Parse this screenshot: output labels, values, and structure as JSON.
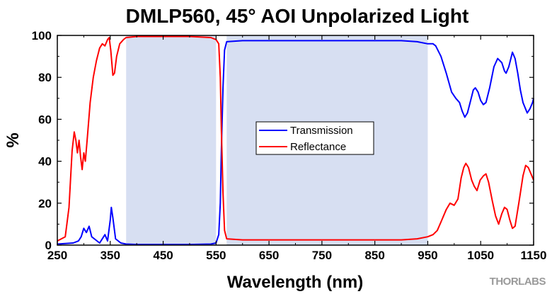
{
  "chart_data": {
    "type": "line",
    "title": "DMLP560, 45° AOI Unpolarized Light",
    "xlabel": "Wavelength (nm)",
    "ylabel": "%",
    "xlim": [
      250,
      1150
    ],
    "ylim": [
      0,
      100
    ],
    "x_ticks": [
      250,
      350,
      450,
      550,
      650,
      750,
      850,
      950,
      1050,
      1150
    ],
    "y_ticks": [
      0,
      20,
      40,
      60,
      80,
      100
    ],
    "grid": false,
    "legend": "center",
    "shaded_bands": [
      {
        "x0": 380,
        "x1": 550,
        "color": "#d7dff2"
      },
      {
        "x0": 570,
        "x1": 950,
        "color": "#d7dff2"
      }
    ],
    "series": [
      {
        "name": "Transmission",
        "color": "#0000ff",
        "points": [
          [
            250,
            0.5
          ],
          [
            280,
            1
          ],
          [
            290,
            2
          ],
          [
            295,
            4
          ],
          [
            300,
            8
          ],
          [
            305,
            6
          ],
          [
            310,
            9
          ],
          [
            315,
            4
          ],
          [
            320,
            3
          ],
          [
            325,
            2
          ],
          [
            330,
            1
          ],
          [
            340,
            5
          ],
          [
            345,
            2
          ],
          [
            350,
            12
          ],
          [
            352,
            18
          ],
          [
            355,
            13
          ],
          [
            360,
            3
          ],
          [
            370,
            1
          ],
          [
            380,
            0.5
          ],
          [
            400,
            0.3
          ],
          [
            450,
            0.3
          ],
          [
            500,
            0.3
          ],
          [
            540,
            0.5
          ],
          [
            550,
            1
          ],
          [
            555,
            5
          ],
          [
            558,
            20
          ],
          [
            560,
            45
          ],
          [
            563,
            75
          ],
          [
            566,
            93
          ],
          [
            570,
            97
          ],
          [
            600,
            97.5
          ],
          [
            650,
            97.5
          ],
          [
            700,
            97.5
          ],
          [
            750,
            97.5
          ],
          [
            800,
            97.5
          ],
          [
            850,
            97.5
          ],
          [
            900,
            97.5
          ],
          [
            930,
            97
          ],
          [
            950,
            96
          ],
          [
            960,
            96
          ],
          [
            965,
            95
          ],
          [
            975,
            90
          ],
          [
            985,
            82
          ],
          [
            995,
            73
          ],
          [
            1003,
            70
          ],
          [
            1010,
            68
          ],
          [
            1015,
            64
          ],
          [
            1020,
            61
          ],
          [
            1025,
            63
          ],
          [
            1030,
            68
          ],
          [
            1036,
            74
          ],
          [
            1040,
            75
          ],
          [
            1045,
            73
          ],
          [
            1050,
            69
          ],
          [
            1055,
            67
          ],
          [
            1060,
            68
          ],
          [
            1067,
            75
          ],
          [
            1075,
            85
          ],
          [
            1082,
            89
          ],
          [
            1090,
            87
          ],
          [
            1095,
            83
          ],
          [
            1098,
            82
          ],
          [
            1103,
            85
          ],
          [
            1110,
            92
          ],
          [
            1115,
            89
          ],
          [
            1120,
            82
          ],
          [
            1125,
            74
          ],
          [
            1130,
            68
          ],
          [
            1138,
            63
          ],
          [
            1143,
            65
          ],
          [
            1148,
            68
          ],
          [
            1150,
            70
          ]
        ]
      },
      {
        "name": "Reflectance",
        "color": "#ff0000",
        "points": [
          [
            250,
            2
          ],
          [
            265,
            4
          ],
          [
            272,
            18
          ],
          [
            278,
            45
          ],
          [
            282,
            54
          ],
          [
            285,
            50
          ],
          [
            288,
            44
          ],
          [
            291,
            50
          ],
          [
            294,
            42
          ],
          [
            297,
            36
          ],
          [
            300,
            44
          ],
          [
            303,
            40
          ],
          [
            307,
            52
          ],
          [
            312,
            68
          ],
          [
            318,
            80
          ],
          [
            324,
            88
          ],
          [
            330,
            94
          ],
          [
            335,
            96
          ],
          [
            340,
            95
          ],
          [
            345,
            98
          ],
          [
            348,
            99
          ],
          [
            351,
            93
          ],
          [
            355,
            81
          ],
          [
            358,
            82
          ],
          [
            362,
            90
          ],
          [
            368,
            96
          ],
          [
            375,
            98
          ],
          [
            380,
            99
          ],
          [
            400,
            99.5
          ],
          [
            450,
            99.5
          ],
          [
            500,
            99.5
          ],
          [
            540,
            99
          ],
          [
            550,
            98
          ],
          [
            555,
            96
          ],
          [
            558,
            80
          ],
          [
            560,
            55
          ],
          [
            563,
            25
          ],
          [
            566,
            7
          ],
          [
            570,
            3
          ],
          [
            600,
            2.5
          ],
          [
            650,
            2.5
          ],
          [
            700,
            2.5
          ],
          [
            750,
            2.5
          ],
          [
            800,
            2.5
          ],
          [
            850,
            2.5
          ],
          [
            900,
            2.5
          ],
          [
            930,
            3
          ],
          [
            950,
            4
          ],
          [
            960,
            5
          ],
          [
            968,
            7
          ],
          [
            975,
            11
          ],
          [
            985,
            17
          ],
          [
            992,
            20
          ],
          [
            1000,
            19
          ],
          [
            1007,
            22
          ],
          [
            1013,
            32
          ],
          [
            1018,
            37
          ],
          [
            1022,
            39
          ],
          [
            1027,
            37
          ],
          [
            1033,
            31
          ],
          [
            1038,
            28
          ],
          [
            1043,
            26
          ],
          [
            1049,
            31
          ],
          [
            1055,
            33
          ],
          [
            1060,
            34
          ],
          [
            1065,
            30
          ],
          [
            1072,
            21
          ],
          [
            1078,
            14
          ],
          [
            1084,
            10
          ],
          [
            1090,
            15
          ],
          [
            1095,
            18
          ],
          [
            1100,
            17
          ],
          [
            1105,
            12
          ],
          [
            1110,
            8
          ],
          [
            1115,
            9
          ],
          [
            1122,
            20
          ],
          [
            1130,
            33
          ],
          [
            1135,
            38
          ],
          [
            1140,
            37
          ],
          [
            1145,
            34
          ],
          [
            1150,
            31
          ]
        ]
      }
    ]
  },
  "branding": {
    "logo_text": "THORLABS"
  }
}
